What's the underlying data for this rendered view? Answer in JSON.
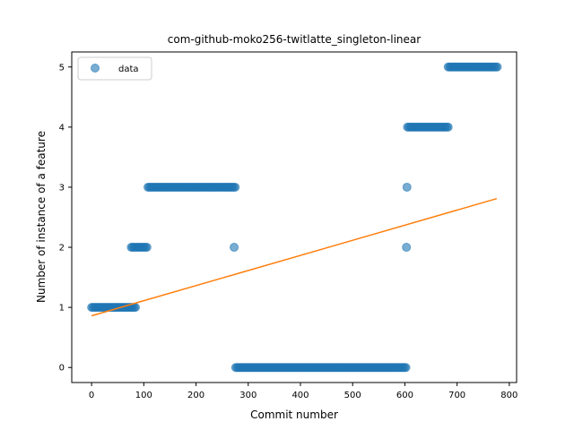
{
  "chart_data": {
    "type": "scatter",
    "title": "com-github-moko256-twitlatte_singleton-linear",
    "xlabel": "Commit number",
    "ylabel": "Number of instance of a feature",
    "xlim": [
      -38,
      814
    ],
    "ylim": [
      -0.25,
      5.25
    ],
    "xticks": [
      0,
      100,
      200,
      300,
      400,
      500,
      600,
      700,
      800
    ],
    "yticks": [
      0,
      1,
      2,
      3,
      4,
      5
    ],
    "grid": false,
    "legend": {
      "position": "top-left",
      "entries": [
        "data"
      ]
    },
    "colors": {
      "data": "#1f77b4",
      "fit": "#ff7f0e"
    },
    "series": [
      {
        "name": "data",
        "kind": "points",
        "segments": [
          {
            "x_from": 0,
            "x_to": 84,
            "y": 1
          },
          {
            "x_from": 76,
            "x_to": 106,
            "y": 2
          },
          {
            "x_from": 108,
            "x_to": 275,
            "y": 3
          },
          {
            "x_from": 273,
            "x_to": 273,
            "y": 2
          },
          {
            "x_from": 276,
            "x_to": 602,
            "y": 0
          },
          {
            "x_from": 604,
            "x_to": 604,
            "y": 3
          },
          {
            "x_from": 603,
            "x_to": 603,
            "y": 2
          },
          {
            "x_from": 605,
            "x_to": 683,
            "y": 4
          },
          {
            "x_from": 683,
            "x_to": 777,
            "y": 5
          }
        ]
      },
      {
        "kind": "fit-line",
        "x": [
          0,
          776
        ],
        "y": [
          0.86,
          2.81
        ]
      }
    ]
  }
}
